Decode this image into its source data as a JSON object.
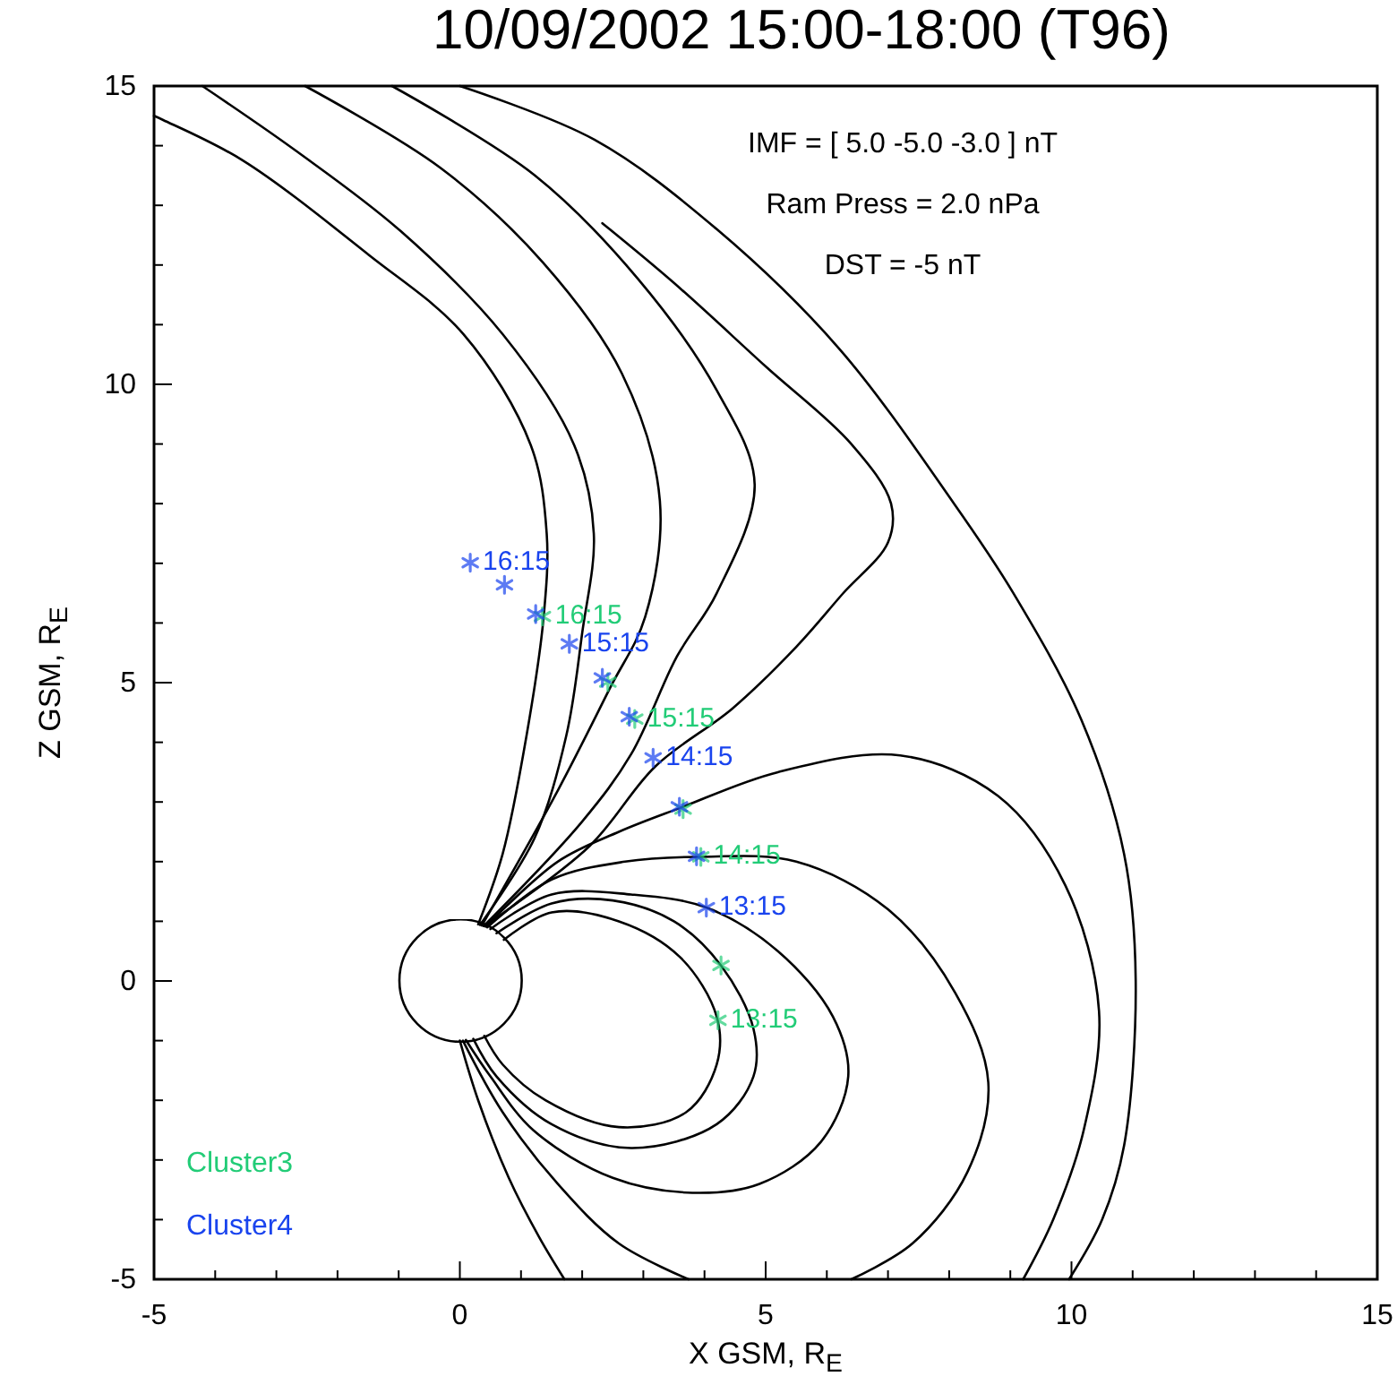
{
  "chart_data": {
    "type": "line",
    "title": "10/09/2002  15:00-18:00  (T96)",
    "xlabel": "X GSM, R$_{E}$",
    "ylabel": "Z GSM, R$_{E}$",
    "xlim": [
      -5,
      15
    ],
    "ylim": [
      -5,
      15
    ],
    "xticks": [
      -5,
      {
        "value": -4,
        "label": null
      },
      {
        "value": -3,
        "label": null
      },
      {
        "value": -2,
        "label": null
      },
      {
        "value": -1,
        "label": null
      },
      0,
      {
        "value": 1,
        "label": null
      },
      {
        "value": 2,
        "label": null
      },
      {
        "value": 3,
        "label": null
      },
      {
        "value": 4,
        "label": null
      },
      5,
      {
        "value": 6,
        "label": null
      },
      {
        "value": 7,
        "label": null
      },
      {
        "value": 8,
        "label": null
      },
      {
        "value": 9,
        "label": null
      },
      10,
      {
        "value": 11,
        "label": null
      },
      {
        "value": 12,
        "label": null
      },
      {
        "value": 13,
        "label": null
      },
      {
        "value": 14,
        "label": null
      },
      15
    ],
    "yticks": [
      -5,
      {
        "value": -4,
        "label": null
      },
      {
        "value": -3,
        "label": null
      },
      {
        "value": -2,
        "label": null
      },
      {
        "value": -1,
        "label": null
      },
      0,
      {
        "value": 1,
        "label": null
      },
      {
        "value": 2,
        "label": null
      },
      {
        "value": 3,
        "label": null
      },
      {
        "value": 4,
        "label": null
      },
      5,
      {
        "value": 6,
        "label": null
      },
      {
        "value": 7,
        "label": null
      },
      {
        "value": 8,
        "label": null
      },
      {
        "value": 9,
        "label": null
      },
      10,
      {
        "value": 11,
        "label": null
      },
      {
        "value": 12,
        "label": null
      },
      {
        "value": 13,
        "label": null
      },
      {
        "value": 14,
        "label": null
      },
      15
    ],
    "grid": false,
    "legend": "bottom left",
    "annotations": [
      "IMF = [  5.0 -5.0 -3.0 ] nT",
      "Ram Press =  2.0 nPa",
      "DST =  -5 nT",
      {
        "text": "16:15",
        "x": 1.35,
        "y": 6.11
      },
      {
        "text": "15:15",
        "x": 2.86,
        "y": 4.39
      },
      {
        "text": "14:15",
        "x": 3.94,
        "y": 2.08
      },
      {
        "text": "13:15",
        "x": 4.22,
        "y": -0.66
      },
      {
        "text": "16:15",
        "x": 0.17,
        "y": 7.01
      },
      {
        "text": "15:15",
        "x": 1.79,
        "y": 5.65
      },
      {
        "text": "14:15",
        "x": 3.16,
        "y": 3.74
      },
      {
        "text": "13:15",
        "x": 4.03,
        "y": 1.23
      }
    ],
    "series": [
      {
        "color": "#000000",
        "x": [
          0,
          2.2,
          4.2,
          6.2,
          8.08,
          9.05,
          10.16,
          10.86,
          11.05,
          10.86,
          10.5,
          9.96
        ],
        "values": [
          15,
          14.1,
          12.6,
          10.6,
          8,
          6.5,
          4.38,
          2.13,
          0,
          -2.76,
          -4,
          -5
        ]
      },
      {
        "color": "#000000",
        "x": [
          0.3,
          0.7,
          1.09,
          1.37,
          1.42,
          1.16,
          0.06,
          -1.49,
          -3.56,
          -4.85,
          -5
        ],
        "values": [
          0.95,
          2.13,
          4.11,
          6.1,
          7.5,
          8.98,
          10.84,
          12.17,
          13.76,
          14.43,
          14.5
        ]
      },
      {
        "color": "#000000",
        "x": [
          0.33,
          1.22,
          1.74,
          2,
          2.19,
          1.87,
          0.7,
          -0.97,
          -2.66,
          -4.21
        ],
        "values": [
          0.94,
          2.39,
          4.11,
          5.83,
          7.5,
          8.98,
          10.84,
          12.57,
          13.9,
          15
        ]
      },
      {
        "color": "#000000",
        "x": [
          0.36,
          1.6,
          2.45,
          3.03,
          3.27,
          2.65,
          1.36,
          -0.32,
          -2.53
        ],
        "values": [
          0.93,
          3.19,
          4.9,
          6.1,
          8.05,
          10.18,
          12.04,
          13.63,
          15
        ]
      },
      {
        "color": "#000000",
        "x": [
          0.39,
          1.99,
          2.8,
          3.55,
          4.2,
          4.82,
          4.2,
          2.91,
          1.23,
          -1.11
        ],
        "values": [
          0.92,
          2.66,
          3.8,
          5.44,
          6.5,
          8.32,
          9.9,
          11.77,
          13.5,
          15
        ]
      },
      {
        "color": "#000000",
        "x": [
          0.4,
          2.12,
          3.2,
          4.46,
          5.5,
          6.26,
          7,
          7.05,
          6.4,
          5,
          3.5,
          2.33
        ],
        "values": [
          0.92,
          2.26,
          3.6,
          4.57,
          5.6,
          6.49,
          7.35,
          8,
          9,
          10.3,
          11.7,
          12.7
        ]
      },
      {
        "color": "#000000",
        "x": [
          0.72,
          1.5,
          2.6,
          3.6,
          4.2,
          4.2,
          3.7,
          2.6,
          1.4,
          0.7,
          0.4
        ],
        "values": [
          0.69,
          1.15,
          1,
          0.4,
          -0.6,
          -1.4,
          -2.2,
          -2.45,
          -2,
          -1.4,
          -0.92
        ]
      },
      {
        "color": "#000000",
        "x": [
          0.6,
          1.5,
          2.5,
          3.5,
          4.27,
          4.8,
          4.8,
          4.2,
          2.8,
          1.5,
          0.6,
          0.22
        ],
        "values": [
          0.8,
          1.3,
          1.35,
          1,
          0.26,
          -0.8,
          -1.6,
          -2.4,
          -2.8,
          -2.4,
          -1.6,
          -0.97
        ]
      },
      {
        "color": "#000000",
        "x": [
          0.5,
          1.5,
          2.8,
          4.03,
          5.2,
          6.1,
          6.35,
          5.9,
          4.9,
          3.8,
          2.5,
          1.2,
          0.5,
          0.1
        ],
        "values": [
          0.87,
          1.45,
          1.45,
          1.23,
          0.5,
          -0.6,
          -1.6,
          -2.7,
          -3.4,
          -3.55,
          -3.3,
          -2.5,
          -1.6,
          -0.99
        ]
      },
      {
        "color": "#000000",
        "x": [
          0.45,
          1.5,
          2.7,
          3.9,
          5.5,
          7,
          8.1,
          8.64,
          8.3,
          7.4,
          6.4
        ],
        "values": [
          0.9,
          1.7,
          2,
          2.08,
          2,
          1.2,
          -0.2,
          -1.7,
          -3.2,
          -4.4,
          -5
        ]
      },
      {
        "color": "#000000",
        "x": [
          0.42,
          1.6,
          2.6,
          3.6,
          5.2,
          7.2,
          8.8,
          9.9,
          10.45,
          10.2,
          9.7,
          9.21
        ],
        "values": [
          0.91,
          2,
          2.5,
          2.9,
          3.5,
          3.78,
          3.1,
          1.6,
          -0.5,
          -2.5,
          -4,
          -5
        ]
      },
      {
        "color": "#000000",
        "x": [
          0,
          0.3,
          0.8,
          1.3,
          1.71
        ],
        "values": [
          -1,
          -2,
          -3.3,
          -4.3,
          -5
        ]
      },
      {
        "color": "#000000",
        "x": [
          0.05,
          0.7,
          1.6,
          2.6,
          3.74
        ],
        "values": [
          -1,
          -2.2,
          -3.4,
          -4.4,
          -5
        ]
      },
      {
        "type": "scatter",
        "name": "Cluster3",
        "color": "#22cc77",
        "marker": "cross",
        "x": [
          1.35,
          2.42,
          2.86,
          3.65,
          3.94,
          4.27,
          4.22
        ],
        "values": [
          6.11,
          5.01,
          4.39,
          2.88,
          2.08,
          0.26,
          -0.66
        ]
      },
      {
        "type": "scatter",
        "name": "Cluster4",
        "color": "#1a44ee",
        "marker": "cross",
        "x": [
          0.17,
          0.73,
          1.24,
          1.79,
          2.33,
          2.77,
          3.16,
          3.59,
          3.87,
          4.03
        ],
        "values": [
          7.01,
          6.64,
          6.15,
          5.65,
          5.08,
          4.43,
          3.74,
          2.92,
          2.09,
          1.23
        ]
      }
    ]
  }
}
